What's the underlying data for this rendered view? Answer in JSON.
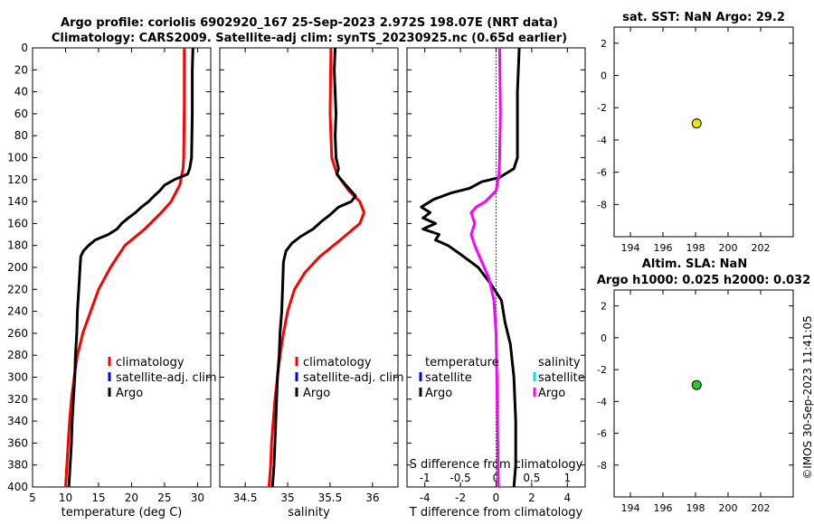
{
  "title_line1": "Argo profile: coriolis 6902920_167 25-Sep-2023 2.972S 198.07E (NRT data)",
  "title_line2": "Climatology: CARS2009. Satellite-adj clim: synTS_20230925.nc (0.65d earlier)",
  "timestamp": "©IMOS 30-Sep-2023 11:41:05",
  "colors": {
    "climatology": "#ff0000",
    "satellite": "#0000ff",
    "argo": "#000000",
    "salinity_sat": "#00e0e0",
    "salinity_argo": "#ff00ff",
    "sst_marker": "#e6e600",
    "sla_marker": "#22cc22"
  },
  "chart_data": [
    {
      "id": "temperature",
      "type": "line",
      "xlabel": "temperature (deg C)",
      "ylabel": "",
      "xlim": [
        5,
        32
      ],
      "ylim": [
        0,
        400
      ],
      "y_reversed": true,
      "xticks": [
        "5",
        "10",
        "15",
        "20",
        "25",
        "30"
      ],
      "yticks": [
        "0",
        "20",
        "40",
        "60",
        "80",
        "100",
        "120",
        "140",
        "160",
        "180",
        "200",
        "220",
        "240",
        "260",
        "280",
        "300",
        "320",
        "340",
        "360",
        "380",
        "400"
      ],
      "legend": [
        "climatology",
        "satellite-adj. clim",
        "Argo"
      ],
      "series": [
        {
          "name": "climatology",
          "color": "#ff0000",
          "points": [
            [
              28,
              0
            ],
            [
              28,
              50
            ],
            [
              27.9,
              100
            ],
            [
              27.8,
              110
            ],
            [
              27.3,
              125
            ],
            [
              26,
              140
            ],
            [
              24.5,
              150
            ],
            [
              22,
              165
            ],
            [
              19,
              180
            ],
            [
              16.8,
              200
            ],
            [
              15,
              220
            ],
            [
              13.8,
              240
            ],
            [
              12.6,
              260
            ],
            [
              11.8,
              280
            ],
            [
              11.3,
              300
            ],
            [
              10.9,
              320
            ],
            [
              10.6,
              340
            ],
            [
              10.4,
              360
            ],
            [
              10.2,
              380
            ],
            [
              10,
              400
            ]
          ]
        },
        {
          "name": "Argo",
          "color": "#000000",
          "points": [
            [
              29.3,
              0
            ],
            [
              29.2,
              20
            ],
            [
              29.2,
              60
            ],
            [
              29.1,
              100
            ],
            [
              28.8,
              110
            ],
            [
              28.5,
              115
            ],
            [
              26.5,
              120
            ],
            [
              25,
              125
            ],
            [
              24.3,
              130
            ],
            [
              23.4,
              135
            ],
            [
              22.6,
              140
            ],
            [
              21.5,
              145
            ],
            [
              20.6,
              150
            ],
            [
              19.5,
              155
            ],
            [
              18.5,
              160
            ],
            [
              17.8,
              165
            ],
            [
              16.5,
              170
            ],
            [
              14.5,
              175
            ],
            [
              13.5,
              180
            ],
            [
              12.7,
              185
            ],
            [
              12.3,
              190
            ],
            [
              12.2,
              200
            ],
            [
              12,
              220
            ],
            [
              11.8,
              240
            ],
            [
              11.7,
              260
            ],
            [
              11.5,
              280
            ],
            [
              11.4,
              300
            ],
            [
              11.2,
              320
            ],
            [
              11,
              340
            ],
            [
              10.9,
              360
            ],
            [
              10.7,
              380
            ],
            [
              10.5,
              400
            ]
          ]
        }
      ]
    },
    {
      "id": "salinity",
      "type": "line",
      "xlabel": "salinity",
      "xlim": [
        34.2,
        36.3
      ],
      "ylim": [
        0,
        400
      ],
      "y_reversed": true,
      "xticks": [
        "34.5",
        "35",
        "35.5",
        "36"
      ],
      "legend": [
        "climatology",
        "satellite-adj. clim",
        "Argo"
      ],
      "series": [
        {
          "name": "climatology",
          "color": "#ff0000",
          "points": [
            [
              35.51,
              0
            ],
            [
              35.5,
              60
            ],
            [
              35.52,
              100
            ],
            [
              35.58,
              115
            ],
            [
              35.72,
              130
            ],
            [
              35.85,
              140
            ],
            [
              35.9,
              150
            ],
            [
              35.85,
              160
            ],
            [
              35.62,
              175
            ],
            [
              35.38,
              190
            ],
            [
              35.2,
              205
            ],
            [
              35.08,
              220
            ],
            [
              35,
              240
            ],
            [
              34.95,
              260
            ],
            [
              34.91,
              280
            ],
            [
              34.88,
              300
            ],
            [
              34.85,
              320
            ],
            [
              34.83,
              340
            ],
            [
              34.81,
              360
            ],
            [
              34.8,
              380
            ],
            [
              34.78,
              400
            ]
          ]
        },
        {
          "name": "Argo",
          "color": "#000000",
          "points": [
            [
              35.56,
              0
            ],
            [
              35.55,
              20
            ],
            [
              35.57,
              60
            ],
            [
              35.56,
              80
            ],
            [
              35.57,
              100
            ],
            [
              35.6,
              110
            ],
            [
              35.58,
              115
            ],
            [
              35.63,
              120
            ],
            [
              35.72,
              128
            ],
            [
              35.8,
              135
            ],
            [
              35.75,
              140
            ],
            [
              35.6,
              145
            ],
            [
              35.5,
              152
            ],
            [
              35.4,
              158
            ],
            [
              35.3,
              165
            ],
            [
              35.15,
              172
            ],
            [
              35.05,
              178
            ],
            [
              34.98,
              185
            ],
            [
              34.95,
              195
            ],
            [
              34.94,
              220
            ],
            [
              34.93,
              240
            ],
            [
              34.91,
              260
            ],
            [
              34.9,
              280
            ],
            [
              34.88,
              300
            ],
            [
              34.87,
              320
            ],
            [
              34.86,
              340
            ],
            [
              34.85,
              360
            ],
            [
              34.84,
              380
            ],
            [
              34.82,
              400
            ]
          ]
        }
      ]
    },
    {
      "id": "difference",
      "type": "line",
      "xlabel": "T difference from climatology",
      "top_xlabel": "S difference from climatology",
      "xlim": [
        -5,
        5
      ],
      "ylim": [
        0,
        400
      ],
      "y_reversed": true,
      "xticks": [
        "-4",
        "-2",
        "0",
        "2",
        "4"
      ],
      "top_xticks": [
        "-1",
        "-0.5",
        "0",
        "0.5",
        "1"
      ],
      "top_xlim": [
        -1.25,
        1.25
      ],
      "legend_t_title": "temperature",
      "legend_s_title": "salinity",
      "legend": [
        "satellite",
        "Argo"
      ],
      "legend_s": [
        "satellite",
        "Argo"
      ],
      "series": [
        {
          "name": "T Argo",
          "color": "#000000",
          "axis": "bottom",
          "points": [
            [
              1.3,
              0
            ],
            [
              1.2,
              40
            ],
            [
              1.2,
              80
            ],
            [
              1.2,
              100
            ],
            [
              1,
              110
            ],
            [
              0.2,
              118
            ],
            [
              -0.8,
              122
            ],
            [
              -1.5,
              128
            ],
            [
              -2.5,
              132
            ],
            [
              -3.5,
              138
            ],
            [
              -4.2,
              145
            ],
            [
              -3.7,
              150
            ],
            [
              -4.1,
              155
            ],
            [
              -3.4,
              160
            ],
            [
              -4.1,
              165
            ],
            [
              -3.2,
              170
            ],
            [
              -3.4,
              175
            ],
            [
              -2.7,
              180
            ],
            [
              -2,
              188
            ],
            [
              -1,
              200
            ],
            [
              -0.3,
              215
            ],
            [
              0.3,
              230
            ],
            [
              0.5,
              250
            ],
            [
              0.8,
              270
            ],
            [
              1,
              300
            ],
            [
              1.1,
              340
            ],
            [
              1.1,
              380
            ],
            [
              1,
              400
            ]
          ]
        },
        {
          "name": "S Argo",
          "color": "#ff00ff",
          "axis": "top",
          "points": [
            [
              0.05,
              0
            ],
            [
              0.06,
              60
            ],
            [
              0.05,
              100
            ],
            [
              0.04,
              115
            ],
            [
              0,
              130
            ],
            [
              -0.15,
              140
            ],
            [
              -0.28,
              145
            ],
            [
              -0.35,
              150
            ],
            [
              -0.3,
              160
            ],
            [
              -0.35,
              170
            ],
            [
              -0.3,
              180
            ],
            [
              -0.2,
              195
            ],
            [
              -0.1,
              210
            ],
            [
              -0.03,
              230
            ],
            [
              0,
              260
            ],
            [
              0.01,
              300
            ],
            [
              0.02,
              340
            ],
            [
              0.03,
              400
            ]
          ]
        }
      ]
    },
    {
      "id": "sst",
      "type": "scatter",
      "title": "sat. SST: NaN Argo: 29.2",
      "xlim": [
        193,
        204
      ],
      "ylim": [
        -10,
        3
      ],
      "xticks": [
        "194",
        "196",
        "198",
        "200",
        "202"
      ],
      "yticks": [
        "2",
        "0",
        "-2",
        "-4",
        "-6",
        "-8"
      ],
      "points": [
        [
          198.07,
          -2.972
        ]
      ]
    },
    {
      "id": "sla",
      "type": "scatter",
      "title": "Altim. SLA: NaN",
      "title2": "Argo h1000: 0.025 h2000: 0.032",
      "xlim": [
        193,
        204
      ],
      "ylim": [
        -10,
        3
      ],
      "xticks": [
        "194",
        "196",
        "198",
        "200",
        "202"
      ],
      "yticks": [
        "2",
        "0",
        "-2",
        "-4",
        "-6",
        "-8"
      ],
      "points": [
        [
          198.07,
          -2.972
        ]
      ]
    }
  ]
}
